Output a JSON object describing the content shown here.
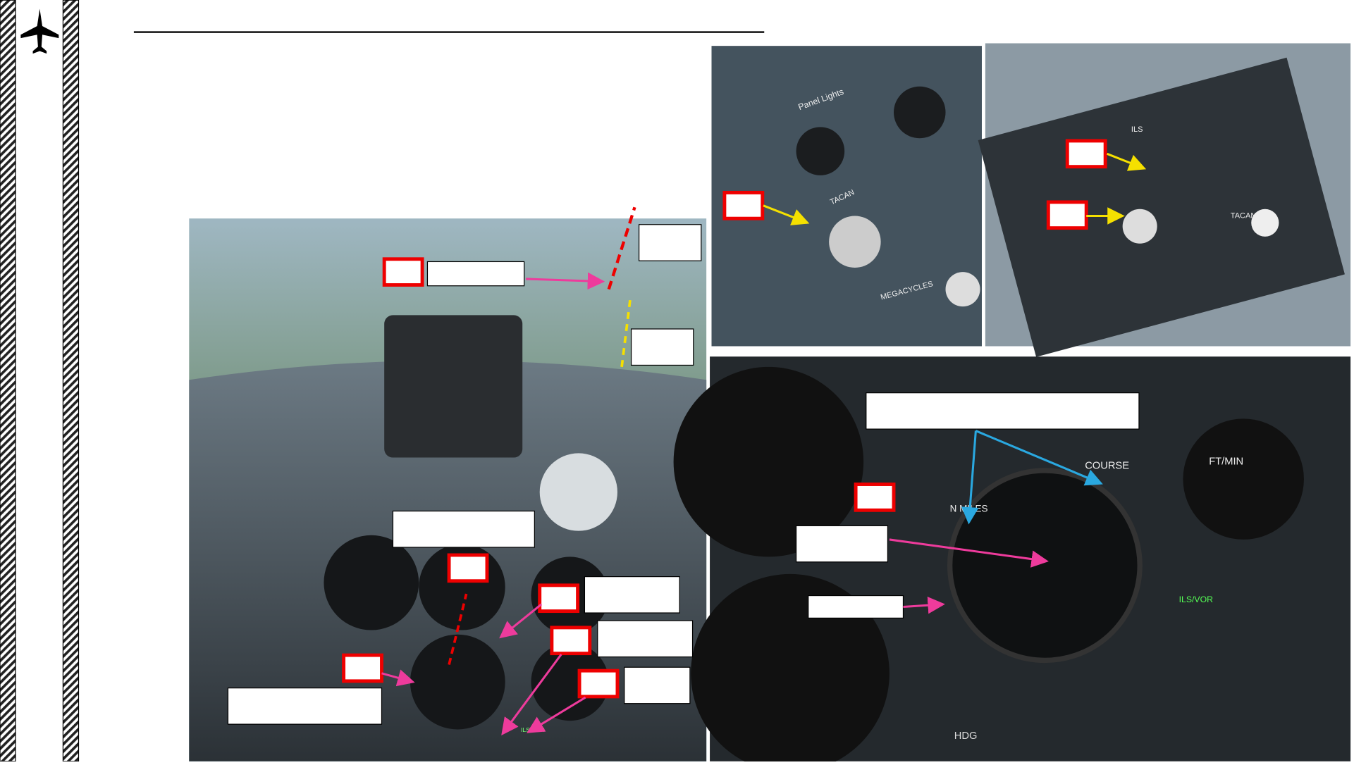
{
  "cockpit_labels": {
    "panel_lights": "Panel Lights",
    "tacan": "TACAN",
    "ils": "ILS",
    "megacycles": "MEGACYCLES",
    "course": "COURSE",
    "n_miles": "N MILES",
    "ft_min": "FT/MIN",
    "ils_vor": "ILS/VOR",
    "hdg": "HDG"
  }
}
